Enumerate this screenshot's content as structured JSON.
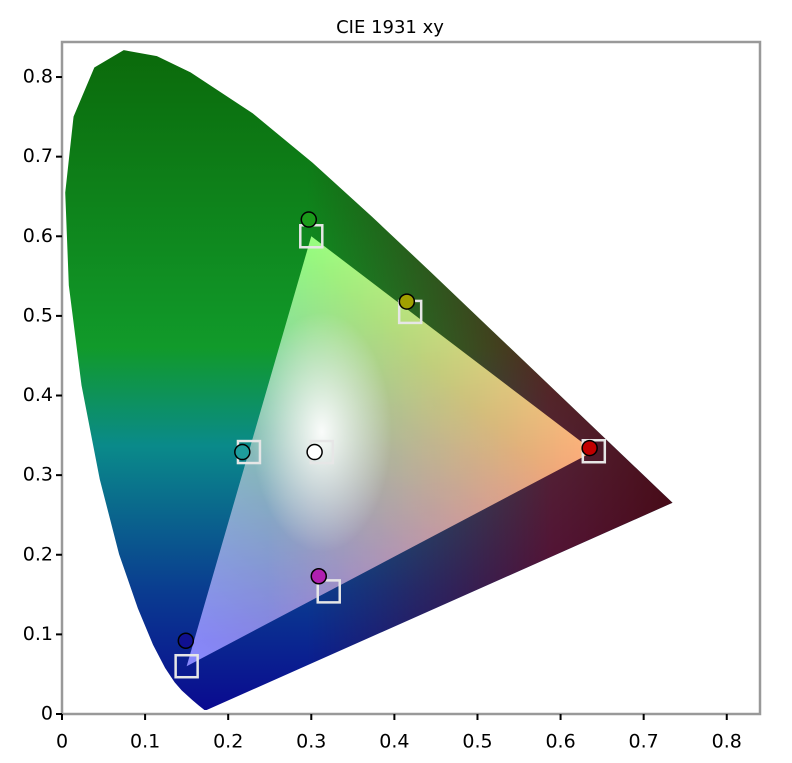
{
  "chart_data": {
    "type": "scatter",
    "title": "CIE 1931 xy",
    "xlim": [
      0,
      0.84
    ],
    "ylim": [
      0,
      0.844
    ],
    "xticks": [
      0,
      0.1,
      0.2,
      0.3,
      0.4,
      0.5,
      0.6,
      0.7,
      0.8
    ],
    "yticks": [
      0,
      0.1,
      0.2,
      0.3,
      0.4,
      0.5,
      0.6,
      0.7,
      0.8
    ],
    "locus": {
      "x": [
        0.1741,
        0.1714,
        0.1644,
        0.1566,
        0.144,
        0.1355,
        0.1241,
        0.1096,
        0.0913,
        0.0687,
        0.0454,
        0.0235,
        0.0082,
        0.0039,
        0.0139,
        0.0389,
        0.0743,
        0.1142,
        0.1547,
        0.2296,
        0.3016,
        0.3731,
        0.4441,
        0.5125,
        0.5752,
        0.627,
        0.6915,
        0.719,
        0.7347
      ],
      "y": [
        0.005,
        0.0051,
        0.0109,
        0.0177,
        0.0297,
        0.0399,
        0.0578,
        0.0868,
        0.1327,
        0.2007,
        0.295,
        0.4127,
        0.5384,
        0.6548,
        0.7502,
        0.812,
        0.8338,
        0.8262,
        0.8059,
        0.7543,
        0.6923,
        0.6245,
        0.5547,
        0.4866,
        0.4242,
        0.3725,
        0.3083,
        0.2809,
        0.2653
      ]
    },
    "targets": {
      "x": [
        0.64,
        0.3,
        0.15,
        0.3127,
        0.225,
        0.321,
        0.419
      ],
      "y": [
        0.33,
        0.6,
        0.06,
        0.329,
        0.329,
        0.154,
        0.505
      ],
      "color": "#e6e6e6"
    },
    "measured": {
      "x": [
        0.635,
        0.297,
        0.149,
        0.304,
        0.217,
        0.309,
        0.415
      ],
      "y": [
        0.334,
        0.621,
        0.092,
        0.329,
        0.329,
        0.173,
        0.518
      ],
      "colors": [
        "#c00000",
        "#1a9a1a",
        "#101090",
        "#ffffff",
        "#1e9c9c",
        "#b020b0",
        "#a0a000"
      ]
    }
  }
}
